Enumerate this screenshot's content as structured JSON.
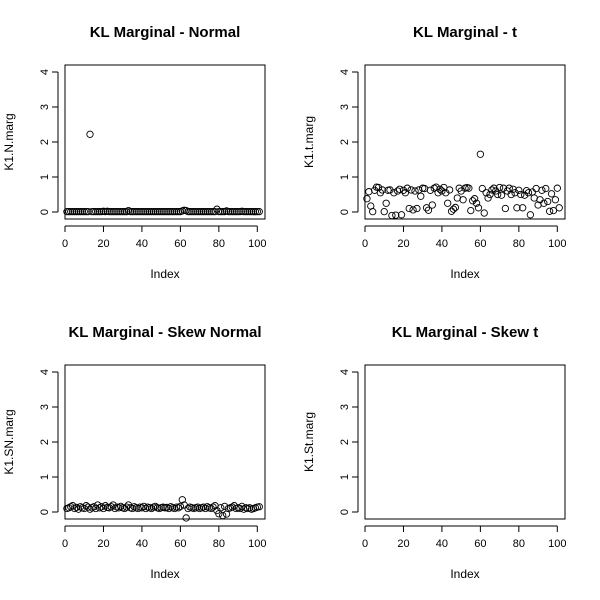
{
  "chart_data": [
    {
      "type": "scatter",
      "title": "KL Marginal - Normal",
      "xlabel": "Index",
      "ylabel": "K1.N.marg",
      "xlim": [
        0,
        104
      ],
      "ylim": [
        0,
        4
      ],
      "xticks": [
        "0",
        "20",
        "40",
        "60",
        "80",
        "100"
      ],
      "yticks": [
        "0",
        "1",
        "2",
        "3",
        "4"
      ],
      "x": [
        1,
        2,
        3,
        4,
        5,
        6,
        7,
        8,
        9,
        10,
        11,
        12,
        13,
        14,
        15,
        16,
        17,
        18,
        19,
        20,
        21,
        22,
        23,
        24,
        25,
        26,
        27,
        28,
        29,
        30,
        31,
        32,
        33,
        34,
        35,
        36,
        37,
        38,
        39,
        40,
        41,
        42,
        43,
        44,
        45,
        46,
        47,
        48,
        49,
        50,
        51,
        52,
        53,
        54,
        55,
        56,
        57,
        58,
        59,
        60,
        61,
        62,
        63,
        64,
        65,
        66,
        67,
        68,
        69,
        70,
        71,
        72,
        73,
        74,
        75,
        76,
        77,
        78,
        79,
        80,
        81,
        82,
        83,
        84,
        85,
        86,
        87,
        88,
        89,
        90,
        91,
        92,
        93,
        94,
        95,
        96,
        97,
        98,
        99,
        100,
        101
      ],
      "y": [
        0.01,
        0.01,
        0.01,
        0.01,
        0.01,
        0.01,
        0.01,
        0.01,
        0.01,
        0.01,
        0.01,
        0.01,
        2.22,
        0.01,
        0.01,
        0.01,
        0.01,
        0.01,
        0.01,
        0.02,
        0.01,
        0.02,
        0.01,
        0.01,
        0.01,
        0.01,
        0.01,
        0.01,
        0.01,
        0.01,
        0.01,
        0.01,
        0.04,
        0.01,
        0.01,
        0.01,
        0.01,
        0.01,
        0.01,
        0.01,
        0.01,
        0.01,
        0.01,
        0.01,
        0.01,
        0.01,
        0.01,
        0.01,
        0.01,
        0.01,
        0.01,
        0.01,
        0.01,
        0.01,
        0.01,
        0.01,
        0.01,
        0.01,
        0.01,
        0.01,
        0.03,
        0.05,
        0.04,
        0.01,
        0.01,
        0.01,
        0.01,
        0.01,
        0.01,
        0.01,
        0.01,
        0.01,
        0.01,
        0.01,
        0.01,
        0.01,
        0.01,
        0.01,
        0.08,
        0.01,
        0.01,
        0.01,
        0.01,
        0.03,
        0.01,
        0.01,
        0.01,
        0.01,
        0.01,
        0.01,
        0.01,
        0.02,
        0.01,
        0.01,
        0.01,
        0.01,
        0.01,
        0.01,
        0.01,
        0.01,
        0.01
      ]
    },
    {
      "type": "scatter",
      "title": "KL Marginal - t",
      "xlabel": "Index",
      "ylabel": "K1.t.marg",
      "xlim": [
        0,
        104
      ],
      "ylim": [
        0,
        4
      ],
      "xticks": [
        "0",
        "20",
        "40",
        "60",
        "80",
        "100"
      ],
      "yticks": [
        "0",
        "1",
        "2",
        "3",
        "4"
      ],
      "x": [
        1,
        2,
        3,
        4,
        5,
        6,
        7,
        8,
        9,
        10,
        11,
        12,
        13,
        14,
        15,
        16,
        17,
        18,
        19,
        20,
        21,
        22,
        23,
        24,
        25,
        26,
        27,
        28,
        29,
        30,
        31,
        32,
        33,
        34,
        35,
        36,
        37,
        38,
        39,
        40,
        41,
        42,
        43,
        44,
        45,
        46,
        47,
        48,
        49,
        50,
        51,
        52,
        53,
        54,
        55,
        56,
        57,
        58,
        59,
        60,
        61,
        62,
        63,
        64,
        65,
        66,
        67,
        68,
        69,
        70,
        71,
        72,
        73,
        74,
        75,
        76,
        77,
        78,
        79,
        80,
        81,
        82,
        83,
        84,
        85,
        86,
        87,
        88,
        89,
        90,
        91,
        92,
        93,
        94,
        95,
        96,
        97,
        98,
        99,
        100,
        101
      ],
      "y": [
        0.38,
        0.58,
        0.17,
        0.01,
        0.62,
        0.71,
        0.7,
        0.55,
        0.63,
        0.01,
        0.25,
        0.62,
        0.63,
        -0.1,
        0.55,
        -0.09,
        0.6,
        0.65,
        -0.08,
        0.62,
        0.55,
        0.68,
        0.1,
        0.63,
        0.06,
        0.6,
        0.1,
        0.63,
        0.45,
        0.68,
        0.67,
        0.12,
        0.05,
        0.62,
        0.2,
        0.68,
        0.71,
        0.55,
        0.65,
        0.6,
        0.7,
        0.55,
        0.25,
        0.63,
        0.02,
        0.08,
        0.13,
        0.4,
        0.68,
        0.6,
        0.35,
        0.68,
        0.7,
        0.68,
        0.04,
        0.32,
        0.38,
        0.25,
        0.12,
        1.65,
        0.67,
        -0.03,
        0.55,
        0.4,
        0.5,
        0.63,
        0.68,
        0.6,
        0.5,
        0.7,
        0.48,
        0.68,
        0.1,
        0.6,
        0.68,
        0.5,
        0.65,
        0.55,
        0.12,
        0.62,
        0.5,
        0.12,
        0.48,
        0.61,
        0.55,
        -0.08,
        0.57,
        0.4,
        0.67,
        0.2,
        0.35,
        0.62,
        0.25,
        0.67,
        0.3,
        0.02,
        0.52,
        0.04,
        0.35,
        0.68,
        0.12
      ]
    },
    {
      "type": "scatter",
      "title": "KL Marginal - Skew Normal",
      "xlabel": "Index",
      "ylabel": "K1.SN.marg",
      "xlim": [
        0,
        104
      ],
      "ylim": [
        0,
        4
      ],
      "xticks": [
        "0",
        "20",
        "40",
        "60",
        "80",
        "100"
      ],
      "yticks": [
        "0",
        "1",
        "2",
        "3",
        "4"
      ],
      "x": [
        1,
        2,
        3,
        4,
        5,
        6,
        7,
        8,
        9,
        10,
        11,
        12,
        13,
        14,
        15,
        16,
        17,
        18,
        19,
        20,
        21,
        22,
        23,
        24,
        25,
        26,
        27,
        28,
        29,
        30,
        31,
        32,
        33,
        34,
        35,
        36,
        37,
        38,
        39,
        40,
        41,
        42,
        43,
        44,
        45,
        46,
        47,
        48,
        49,
        50,
        51,
        52,
        53,
        54,
        55,
        56,
        57,
        58,
        59,
        60,
        61,
        62,
        63,
        64,
        65,
        66,
        67,
        68,
        69,
        70,
        71,
        72,
        73,
        74,
        75,
        76,
        77,
        78,
        79,
        80,
        81,
        82,
        83,
        84,
        85,
        86,
        87,
        88,
        89,
        90,
        91,
        92,
        93,
        94,
        95,
        96,
        97,
        98,
        99,
        100,
        101
      ],
      "y": [
        0.1,
        0.12,
        0.15,
        0.18,
        0.1,
        0.13,
        0.08,
        0.15,
        0.12,
        0.1,
        0.18,
        0.14,
        0.08,
        0.12,
        0.15,
        0.1,
        0.2,
        0.12,
        0.15,
        0.1,
        0.18,
        0.13,
        0.12,
        0.15,
        0.2,
        0.1,
        0.14,
        0.12,
        0.16,
        0.12,
        0.1,
        0.14,
        0.2,
        0.12,
        0.1,
        0.15,
        0.12,
        0.1,
        0.14,
        0.12,
        0.16,
        0.1,
        0.14,
        0.12,
        0.1,
        0.14,
        0.16,
        0.12,
        0.1,
        0.12,
        0.14,
        0.12,
        0.13,
        0.1,
        0.15,
        0.12,
        0.1,
        0.14,
        0.12,
        0.16,
        0.35,
        0.2,
        -0.17,
        0.1,
        0.14,
        0.12,
        0.1,
        0.12,
        0.14,
        0.1,
        0.12,
        0.14,
        0.1,
        0.15,
        0.12,
        0.1,
        0.14,
        0.18,
        0.04,
        -0.05,
        0.12,
        -0.1,
        0.16,
        -0.06,
        0.1,
        0.12,
        0.14,
        0.18,
        0.1,
        0.12,
        0.1,
        0.16,
        0.08,
        0.12,
        0.1,
        0.12,
        0.08,
        0.1,
        0.12,
        0.14,
        0.15
      ]
    },
    {
      "type": "scatter",
      "title": "KL Marginal - Skew t",
      "xlabel": "Index",
      "ylabel": "K1.St.marg",
      "xlim": [
        0,
        104
      ],
      "ylim": [
        0,
        4
      ],
      "xticks": [
        "0",
        "20",
        "40",
        "60",
        "80",
        "100"
      ],
      "yticks": [
        "0",
        "1",
        "2",
        "3",
        "4"
      ],
      "x": [],
      "y": []
    }
  ]
}
